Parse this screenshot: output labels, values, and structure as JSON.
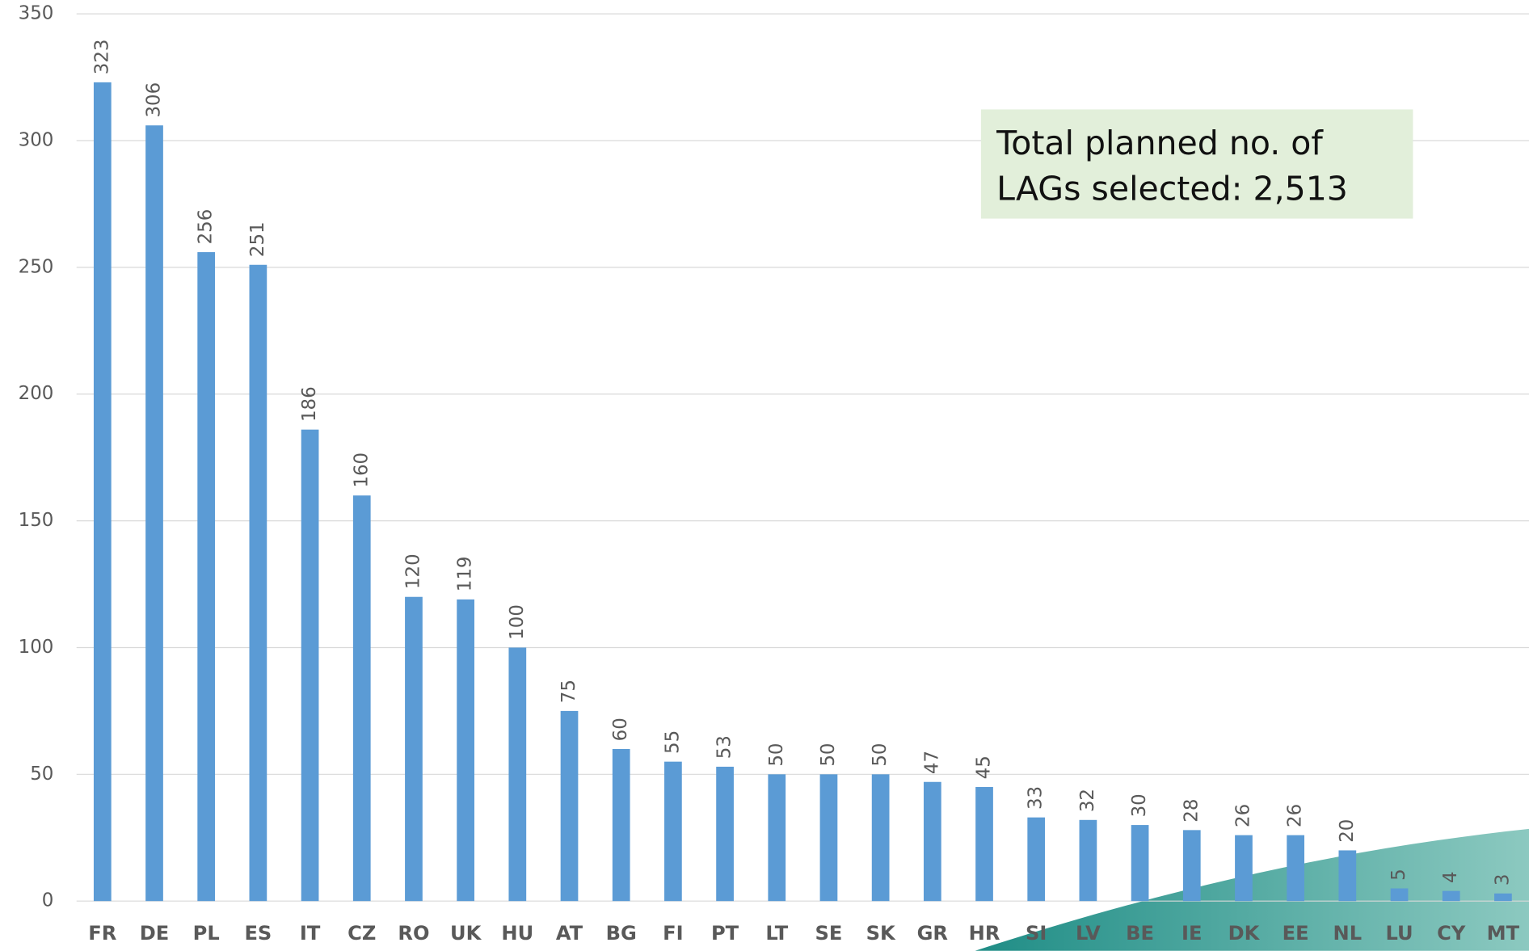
{
  "chart_data": {
    "type": "bar",
    "annotation": [
      "Total planned no. of",
      "LAGs selected: 2,513"
    ],
    "categories": [
      "FR",
      "DE",
      "PL",
      "ES",
      "IT",
      "CZ",
      "RO",
      "UK",
      "HU",
      "AT",
      "BG",
      "FI",
      "PT",
      "LT",
      "SE",
      "SK",
      "GR",
      "HR",
      "SI",
      "LV",
      "BE",
      "IE",
      "DK",
      "EE",
      "NL",
      "LU",
      "CY",
      "MT"
    ],
    "values": [
      323,
      306,
      256,
      251,
      186,
      160,
      120,
      119,
      100,
      75,
      60,
      55,
      53,
      50,
      50,
      50,
      47,
      45,
      33,
      32,
      30,
      28,
      26,
      26,
      20,
      5,
      4,
      3
    ],
    "color": "#5b9bd5",
    "ylim": [
      0,
      350
    ],
    "yticks": [
      0,
      50,
      100,
      150,
      200,
      250,
      300,
      350
    ],
    "grid": true
  }
}
